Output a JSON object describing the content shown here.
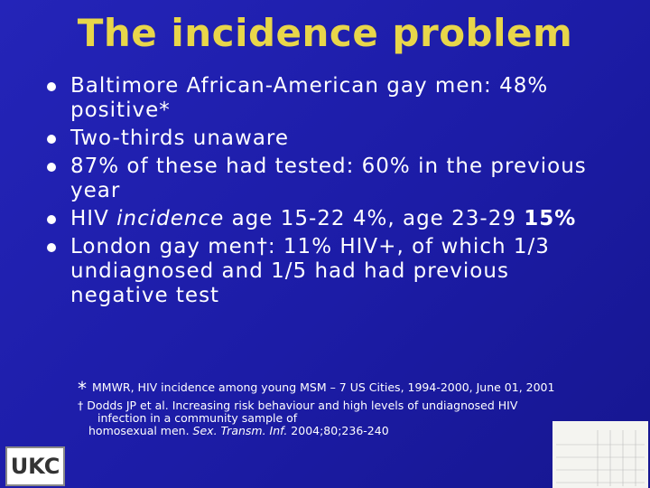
{
  "header": {
    "title": "The incidence problem"
  },
  "bullets": [
    [
      "Baltimore African-American gay men: 48% positive*"
    ],
    [
      "Two-thirds unaware"
    ],
    [
      "87% of these had tested: 60% in the previous year"
    ],
    [
      "HIV ",
      "incidence",
      " age 15-22 4%, age 23-29 ",
      "15%"
    ],
    [
      "London gay men†: 11% HIV+, of which 1/3 undiagnosed and 1/5 had had previous negative test"
    ]
  ],
  "footnotes": [
    [
      "*",
      "MMWR, HIV incidence among young MSM – 7 US Cities, 1994-2000, June 01, 2001"
    ],
    [
      "† Dodds JP et al. Increasing risk behaviour and high levels of undiagnosed HIV",
      "infection in a community sample of",
      "homosexual men. ",
      "Sex. Transm. Inf.",
      " 2004;80;236-240"
    ]
  ],
  "logo": "UKC"
}
